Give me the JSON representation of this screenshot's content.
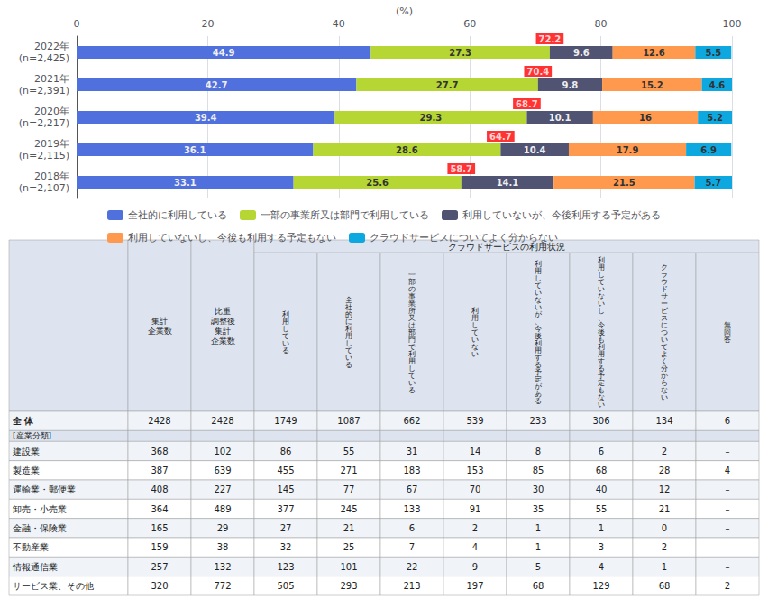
{
  "chart_data": {
    "type": "bar",
    "orientation": "horizontal",
    "stacked": true,
    "categories": [
      "2022年\n(n=2,425)",
      "2021年\n(n=2,391)",
      "2020年\n(n=2,217)",
      "2019年\n(n=2,115)",
      "2018年\n(n=2,107)"
    ],
    "series": [
      {
        "name": "全社的に利用している",
        "values": [
          44.9,
          42.7,
          39.4,
          36.1,
          33.1
        ]
      },
      {
        "name": "一部の事業所又は部門で利用している",
        "values": [
          27.3,
          27.7,
          29.3,
          28.6,
          25.6
        ]
      },
      {
        "name": "利用していないが、今後利用する予定がある",
        "values": [
          9.6,
          9.8,
          10.1,
          10.4,
          14.1
        ]
      },
      {
        "name": "利用していないし、今後も利用する予定もない",
        "values": [
          12.6,
          15.2,
          16.0,
          17.9,
          21.5
        ]
      },
      {
        "name": "クラウドサービスについてよく分からない",
        "values": [
          5.5,
          4.6,
          5.2,
          6.9,
          5.7
        ]
      }
    ],
    "totals": {
      "values": [
        72.2,
        70.4,
        68.7,
        64.7,
        58.7
      ],
      "color": "#ff0000"
    },
    "xlabel": "(%)",
    "xlim": [
      0,
      100
    ],
    "xticks": [
      0,
      20,
      40,
      60,
      80,
      100
    ],
    "grid": true,
    "data_labels": true,
    "legend": "bottom"
  },
  "table": {
    "header": "クラウドサービスの利用状況",
    "columns": [
      "集計\n企業数",
      "比重\n調整後\n集計\n企業数",
      "利\n用\nし\nて\nい\nる",
      "全\n社\n的\nに\n利\n用\nし\nて\nい\nる",
      "一\n部\nの\n事\n業\n所\n又\nは\n部\n門\nで\n利\n用\nし\nて\nい\nる",
      "利\n用\nし\nて\nい\nな\nい",
      "利\n用\nし\nて\nい\nな\nい\nが\n、\n今\n後\n利\n用\nす\nる\n予\n定\nが\nあ\nる",
      "利\n用\nし\nて\nい\nな\nい\nし\n、\n今\n後\nも\n利\n用\nす\nる\n予\n定\nも\nな\nい",
      "ク\nラ\nウ\nド\nサ\nー\nビ\nス\nに\nつ\nい\nて\nよ\nく\n分\nか\nら\nな\nい",
      "無\n回\n答"
    ],
    "rows": [
      {
        "label": "全 体",
        "values": [
          2428,
          2428,
          1749,
          1087,
          662,
          539,
          233,
          306,
          134,
          6
        ]
      },
      {
        "label": "[産業分類]",
        "values": [
          null,
          null,
          null,
          null,
          null,
          null,
          null,
          null,
          null,
          null
        ]
      },
      {
        "label": "建設業",
        "values": [
          368,
          102,
          86,
          55,
          31,
          14,
          8,
          6,
          2,
          "–"
        ]
      },
      {
        "label": "製造業",
        "values": [
          387,
          639,
          455,
          271,
          183,
          153,
          85,
          68,
          28,
          4
        ]
      },
      {
        "label": "運輸業・郵便業",
        "values": [
          408,
          227,
          145,
          77,
          67,
          70,
          30,
          40,
          12,
          "–"
        ]
      },
      {
        "label": "卸売・小売業",
        "values": [
          364,
          489,
          377,
          245,
          133,
          91,
          35,
          55,
          21,
          "–"
        ]
      },
      {
        "label": "金融・保険業",
        "values": [
          165,
          29,
          27,
          21,
          6,
          2,
          1,
          1,
          0,
          "–"
        ]
      },
      {
        "label": "不動産業",
        "values": [
          159,
          38,
          32,
          25,
          7,
          4,
          1,
          3,
          2,
          "–"
        ]
      },
      {
        "label": "情報通信業",
        "values": [
          257,
          132,
          123,
          101,
          22,
          9,
          5,
          4,
          1,
          "–"
        ]
      },
      {
        "label": "サービス業、その他",
        "values": [
          320,
          772,
          505,
          293,
          213,
          197,
          68,
          129,
          68,
          2
        ]
      }
    ]
  }
}
